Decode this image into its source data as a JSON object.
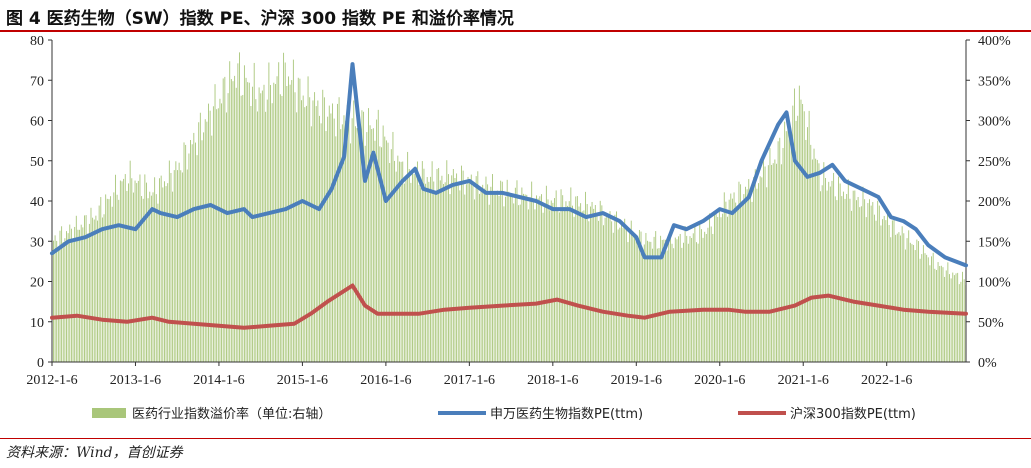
{
  "title": "图 4 医药生物（SW）指数 PE、沪深 300 指数 PE 和溢价率情况",
  "source": "资料来源：Wind，首创证券",
  "chart_data": {
    "type": "bar-line",
    "title": "",
    "x_tick_labels": [
      "2012-1-6",
      "2013-1-6",
      "2014-1-6",
      "2015-1-6",
      "2016-1-6",
      "2017-1-6",
      "2018-1-6",
      "2019-1-6",
      "2020-1-6",
      "2021-1-6",
      "2022-1-6"
    ],
    "y_left": {
      "ylim": [
        0,
        80
      ],
      "ticks": [
        "0",
        "10",
        "20",
        "30",
        "40",
        "50",
        "60",
        "70",
        "80"
      ]
    },
    "y_right": {
      "ylim": [
        0,
        400
      ],
      "unit": "%",
      "ticks": [
        "0%",
        "50%",
        "100%",
        "150%",
        "200%",
        "250%",
        "300%",
        "350%",
        "400%"
      ]
    },
    "x_range": [
      2012.0,
      2022.95
    ],
    "grid": false,
    "legend_position": "bottom",
    "series": [
      {
        "name": "医药行业指数溢价率（单位:右轴）",
        "type": "bar",
        "axis": "right",
        "color": "#a9c67a",
        "x": [
          2012.0,
          2012.5,
          2012.9,
          2013.2,
          2013.5,
          2013.9,
          2014.2,
          2014.5,
          2014.8,
          2015.0,
          2015.3,
          2015.6,
          2015.9,
          2016.2,
          2016.5,
          2016.8,
          2017.1,
          2017.5,
          2017.9,
          2018.2,
          2018.5,
          2018.9,
          2019.1,
          2019.4,
          2019.8,
          2020.1,
          2020.4,
          2020.7,
          2020.95,
          2021.2,
          2021.5,
          2021.8,
          2022.1,
          2022.4,
          2022.6,
          2022.95
        ],
        "y": [
          150,
          180,
          230,
          210,
          240,
          310,
          360,
          330,
          360,
          330,
          310,
          300,
          290,
          240,
          230,
          230,
          220,
          210,
          200,
          200,
          190,
          165,
          150,
          150,
          160,
          200,
          220,
          260,
          330,
          230,
          210,
          195,
          165,
          140,
          120,
          100
        ]
      },
      {
        "name": "申万医药生物指数PE(ttm)",
        "type": "line",
        "axis": "left",
        "color": "#4a7ebb",
        "x": [
          2012.0,
          2012.2,
          2012.4,
          2012.6,
          2012.8,
          2013.0,
          2013.2,
          2013.3,
          2013.5,
          2013.7,
          2013.9,
          2014.1,
          2014.3,
          2014.4,
          2014.6,
          2014.8,
          2015.0,
          2015.2,
          2015.35,
          2015.5,
          2015.6,
          2015.75,
          2015.85,
          2016.0,
          2016.2,
          2016.35,
          2016.45,
          2016.6,
          2016.8,
          2017.0,
          2017.2,
          2017.4,
          2017.6,
          2017.8,
          2018.0,
          2018.2,
          2018.4,
          2018.6,
          2018.8,
          2019.0,
          2019.1,
          2019.3,
          2019.45,
          2019.6,
          2019.8,
          2020.0,
          2020.15,
          2020.35,
          2020.5,
          2020.7,
          2020.8,
          2020.9,
          2021.05,
          2021.2,
          2021.35,
          2021.5,
          2021.7,
          2021.9,
          2022.05,
          2022.2,
          2022.35,
          2022.5,
          2022.7,
          2022.95
        ],
        "y": [
          27,
          30,
          31,
          33,
          34,
          33,
          38,
          37,
          36,
          38,
          39,
          37,
          38,
          36,
          37,
          38,
          40,
          38,
          43,
          51,
          74,
          45,
          52,
          40,
          45,
          48,
          43,
          42,
          44,
          45,
          42,
          42,
          41,
          40,
          38,
          38,
          36,
          37,
          35,
          31,
          26,
          26,
          34,
          33,
          35,
          38,
          37,
          41,
          50,
          59,
          62,
          50,
          46,
          47,
          49,
          45,
          43,
          41,
          36,
          35,
          33,
          29,
          26,
          24
        ]
      },
      {
        "name": "沪深300指数PE(ttm)",
        "type": "line",
        "axis": "left",
        "color": "#c0504d",
        "x": [
          2012.0,
          2012.3,
          2012.6,
          2012.9,
          2013.2,
          2013.4,
          2013.7,
          2014.0,
          2014.3,
          2014.6,
          2014.9,
          2015.1,
          2015.3,
          2015.45,
          2015.6,
          2015.75,
          2015.9,
          2016.1,
          2016.4,
          2016.7,
          2017.0,
          2017.4,
          2017.8,
          2018.05,
          2018.3,
          2018.6,
          2018.9,
          2019.1,
          2019.4,
          2019.8,
          2020.1,
          2020.3,
          2020.6,
          2020.9,
          2021.1,
          2021.3,
          2021.6,
          2021.9,
          2022.2,
          2022.5,
          2022.95
        ],
        "y": [
          11,
          11.5,
          10.5,
          10,
          11,
          10,
          9.5,
          9,
          8.5,
          9,
          9.5,
          12,
          15,
          17,
          19,
          14,
          12,
          12,
          12,
          13,
          13.5,
          14,
          14.5,
          15.5,
          14,
          12.5,
          11.5,
          11,
          12.5,
          13,
          13,
          12.5,
          12.5,
          14,
          16,
          16.5,
          15,
          14,
          13,
          12.5,
          12
        ]
      }
    ]
  }
}
